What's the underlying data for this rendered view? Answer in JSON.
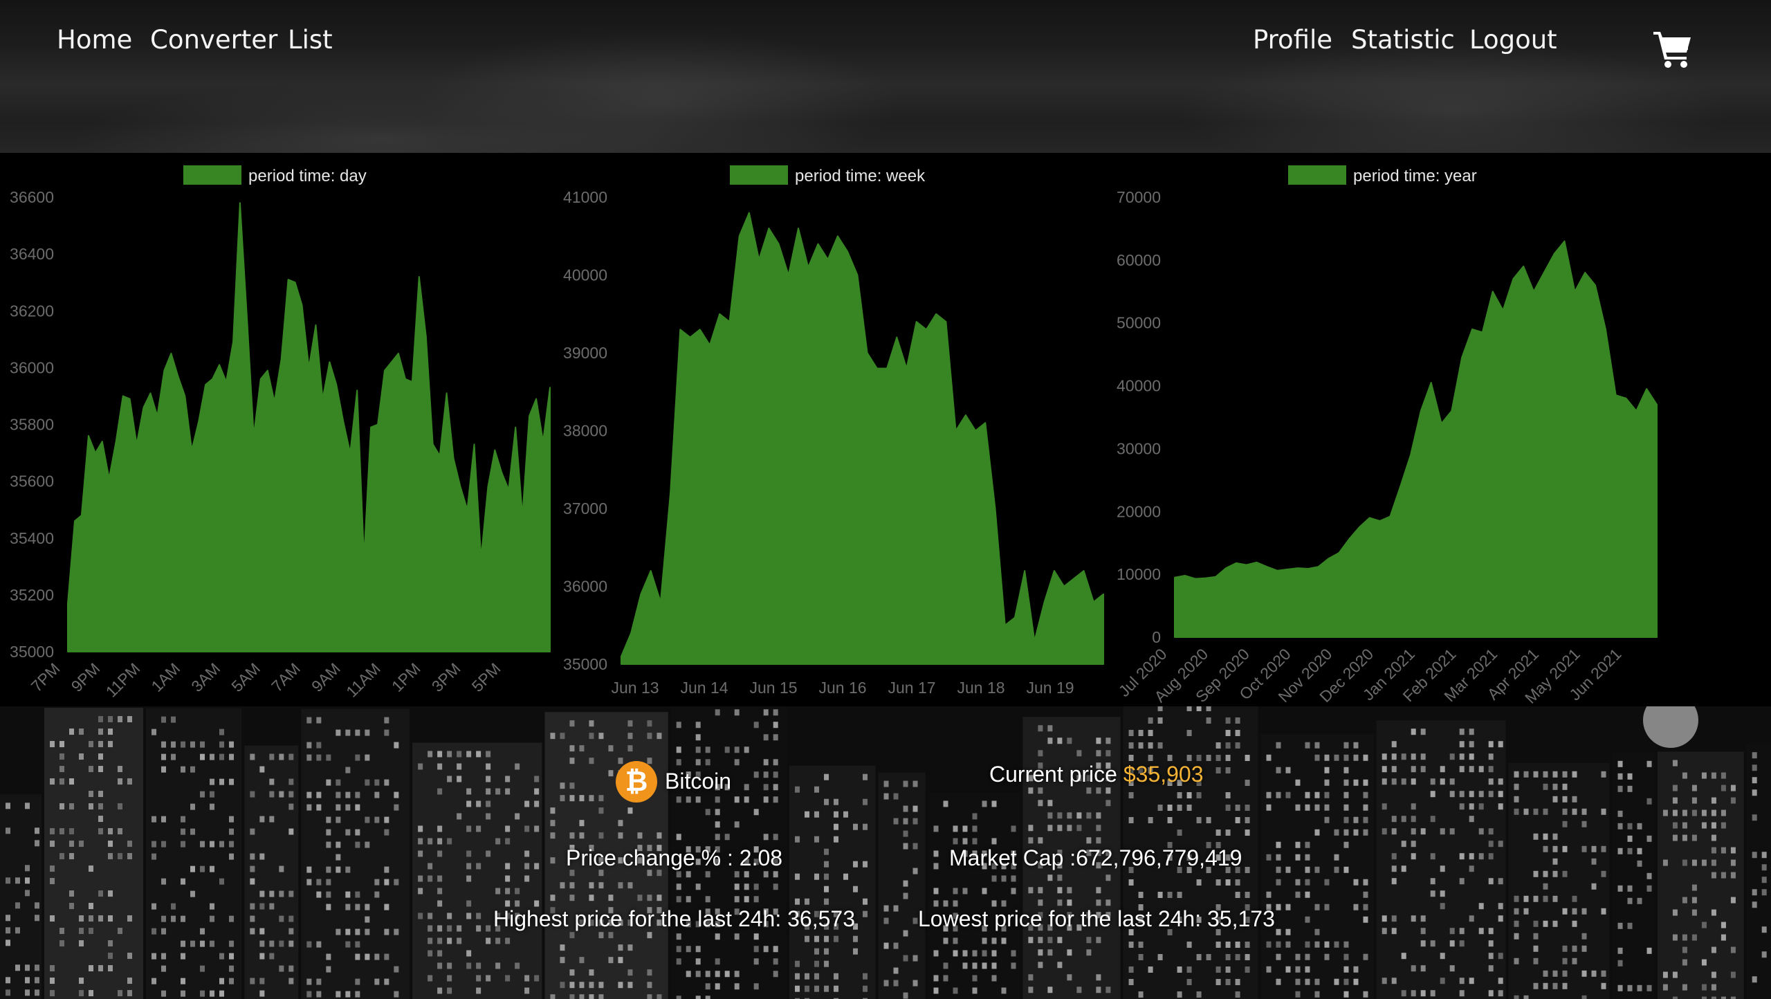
{
  "nav": {
    "left_links": [
      "Home",
      "Converter",
      "List"
    ],
    "right_links": [
      "Profile",
      "Statistic",
      "Logout"
    ],
    "cart_icon": "cart-icon"
  },
  "colors": {
    "series_fill": "#388524",
    "legend_swatch": "#388524",
    "price_accent": "#f5b335",
    "coin": "#f0941b"
  },
  "charts": [
    {
      "type": "area",
      "legend": "period time: day",
      "legend_position": "top-center",
      "grid": false,
      "ylim": [
        35000,
        36600
      ],
      "yticks": [
        35000,
        35200,
        35400,
        35600,
        35800,
        36000,
        36200,
        36400,
        36600
      ],
      "xticks": [
        "7PM",
        "9PM",
        "11PM",
        "1AM",
        "3AM",
        "5AM",
        "7AM",
        "9AM",
        "11AM",
        "1PM",
        "3PM",
        "5PM"
      ],
      "values": [
        35170,
        35460,
        35480,
        35760,
        35700,
        35740,
        35610,
        35740,
        35900,
        35890,
        35730,
        35860,
        35910,
        35830,
        35990,
        36050,
        35970,
        35900,
        35710,
        35810,
        35940,
        35960,
        36010,
        35950,
        36090,
        36580,
        36180,
        35760,
        35960,
        35990,
        35880,
        36030,
        36310,
        36300,
        36220,
        36000,
        36150,
        35890,
        36020,
        35940,
        35810,
        35700,
        35920,
        35330,
        35790,
        35800,
        35990,
        36020,
        36050,
        35960,
        35950,
        36320,
        36110,
        35730,
        35690,
        35910,
        35680,
        35580,
        35500,
        35730,
        35330,
        35580,
        35710,
        35630,
        35570,
        35790,
        35480,
        35830,
        35890,
        35740,
        35930
      ]
    },
    {
      "type": "area",
      "legend": "period time: week",
      "legend_position": "top-center",
      "grid": false,
      "ylim": [
        35000,
        41000
      ],
      "yticks": [
        35000,
        36000,
        37000,
        38000,
        39000,
        40000,
        41000
      ],
      "xticks": [
        "Jun 13",
        "Jun 14",
        "Jun 15",
        "Jun 16",
        "Jun 17",
        "Jun 18",
        "Jun 19"
      ],
      "values": [
        35100,
        35400,
        35900,
        36200,
        35800,
        37200,
        39300,
        39200,
        39300,
        39100,
        39500,
        39400,
        40500,
        40800,
        40200,
        40600,
        40400,
        40000,
        40600,
        40100,
        40400,
        40200,
        40500,
        40300,
        40000,
        39000,
        38800,
        38800,
        39200,
        38800,
        39400,
        39300,
        39500,
        39400,
        38000,
        38200,
        38000,
        38100,
        37000,
        35500,
        35600,
        36200,
        35300,
        35800,
        36200,
        36000,
        36100,
        36200,
        35800,
        35900
      ]
    },
    {
      "type": "area",
      "legend": "period time: year",
      "legend_position": "top-center",
      "grid": false,
      "ylim": [
        0,
        70000
      ],
      "yticks": [
        0,
        10000,
        20000,
        30000,
        40000,
        50000,
        60000,
        70000
      ],
      "xticks": [
        "Jul 2020",
        "Aug 2020",
        "Sep 2020",
        "Oct 2020",
        "Nov 2020",
        "Dec 2020",
        "Jan 2021",
        "Feb 2021",
        "Mar 2021",
        "Apr 2021",
        "May 2021",
        "Jun 2021"
      ],
      "values": [
        9500,
        9800,
        9300,
        9400,
        9600,
        11000,
        11800,
        11500,
        11900,
        11200,
        10600,
        10800,
        11000,
        10900,
        11200,
        12500,
        13400,
        15600,
        17500,
        19000,
        18500,
        19200,
        24000,
        29000,
        36000,
        40500,
        34000,
        36000,
        44500,
        49000,
        48500,
        55000,
        52000,
        57000,
        59000,
        55000,
        58000,
        61000,
        63000,
        55000,
        58000,
        56000,
        49000,
        38500,
        38000,
        36000,
        39500,
        37000
      ]
    }
  ],
  "coin": {
    "name": "Bitcoin",
    "symbol": "bitcoin-icon",
    "current_price_label": "Current price",
    "current_price_value": "$35,903",
    "price_change": "Price change % : 2.08",
    "market_cap": "Market Cap :672,796,779,419",
    "highest": "Highest price for the last 24h: 36,573",
    "lowest": "Lowest price for the last 24h: 35,173"
  }
}
